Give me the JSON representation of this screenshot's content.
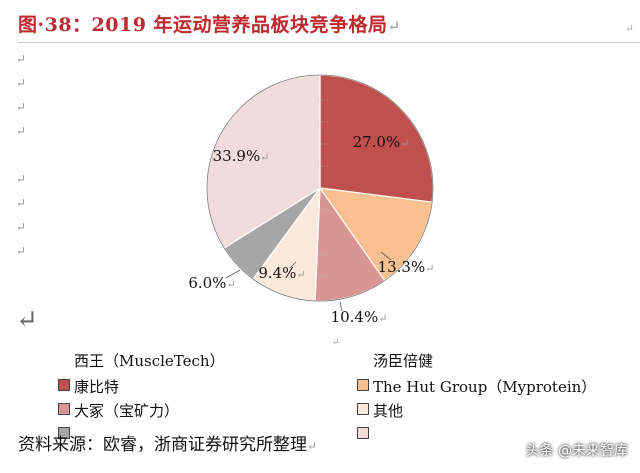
{
  "title": "图·38：2019 年运动营养品板块竞争格局",
  "source": "资料来源：欧睿，浙商证券研究所整理",
  "watermark": "头条 @未来智库",
  "return_mark": "↵",
  "big_return_mark": "↵",
  "colors": {
    "title": "#c0282d",
    "slices": [
      "#c0504d",
      "#fac090",
      "#d99594",
      "#fde9d9",
      "#a6a6a6",
      "#f2dcdb"
    ]
  },
  "chart_data": {
    "type": "pie",
    "title": "",
    "start_angle_deg": 0,
    "direction": "clockwise",
    "labels": [
      "西王（MuscleTech）",
      "汤臣倍健",
      "康比特",
      "The Hut Group（Myprotein）",
      "大冢（宝矿力）",
      "其他"
    ],
    "values": [
      27.0,
      13.3,
      10.4,
      9.4,
      6.0,
      33.9
    ],
    "data_labels": [
      "27.0%",
      "13.3%",
      "10.4%",
      "9.4%",
      "6.0%",
      "33.9%"
    ],
    "legend_placement": "bottom"
  }
}
